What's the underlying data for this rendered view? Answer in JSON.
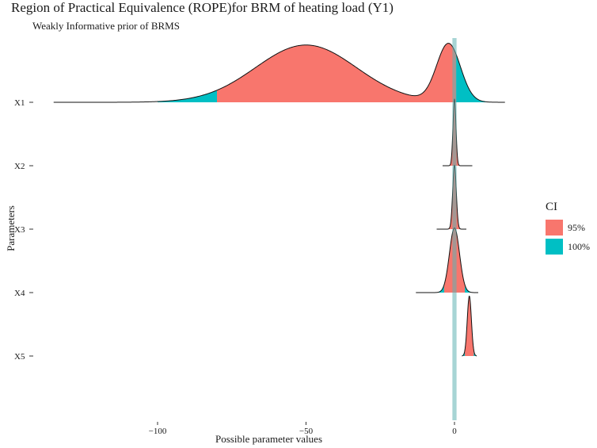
{
  "chart_data": {
    "type": "ridgeline",
    "title": "Region of Practical Equivalence (ROPE)for BRM of heating load (Y1)",
    "subtitle": "Weakly Informative prior of BRMS",
    "xlabel": "Possible parameter values",
    "ylabel": "Parameters",
    "xlim": [
      -135,
      17
    ],
    "x_ticks": [
      {
        "value": -100,
        "label": "−100"
      },
      {
        "value": -50,
        "label": "−50"
      },
      {
        "value": 0,
        "label": "0"
      }
    ],
    "rope_range": [
      -0.7,
      0.7
    ],
    "legend": {
      "title": "CI",
      "placement": "right",
      "items": [
        {
          "label": "95%",
          "color": "#F8766D"
        },
        {
          "label": "100%",
          "color": "#00BFC4"
        }
      ]
    },
    "grid": false,
    "series": [
      {
        "name": "X1",
        "ci_full": [
          -100,
          10.5
        ],
        "ci_95": [
          -80,
          0.5
        ],
        "range": [
          -135,
          17
        ],
        "peaks": [
          {
            "mu": -50,
            "sigma": 17,
            "amp": 0.86
          },
          {
            "mu": -2,
            "sigma": 4,
            "amp": 0.87
          }
        ]
      },
      {
        "name": "X2",
        "ci_full": [
          -3,
          3
        ],
        "ci_95": [
          -1.8,
          1.8
        ],
        "range": [
          -4,
          6
        ],
        "peaks": [
          {
            "mu": 0,
            "sigma": 0.5,
            "amp": 1.0
          }
        ]
      },
      {
        "name": "X3",
        "ci_full": [
          -3.5,
          3.5
        ],
        "ci_95": [
          -1.8,
          1.8
        ],
        "range": [
          -6,
          4
        ],
        "peaks": [
          {
            "mu": 0,
            "sigma": 0.6,
            "amp": 0.96
          }
        ]
      },
      {
        "name": "X4",
        "ci_full": [
          -6,
          6
        ],
        "ci_95": [
          -3.5,
          3.5
        ],
        "range": [
          -13,
          8
        ],
        "peaks": [
          {
            "mu": 0,
            "sigma": 1.7,
            "amp": 0.97
          }
        ]
      },
      {
        "name": "X5",
        "ci_full": [
          3,
          7
        ],
        "ci_95": [
          3.5,
          6.5
        ],
        "range": [
          2.5,
          7.5
        ],
        "peaks": [
          {
            "mu": 5,
            "sigma": 0.7,
            "amp": 0.9
          }
        ]
      }
    ]
  }
}
